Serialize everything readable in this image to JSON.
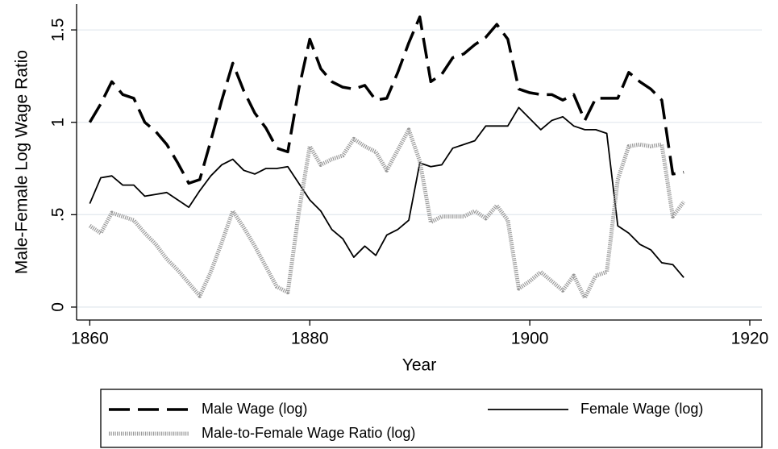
{
  "chart_data": {
    "type": "line",
    "x_label": "Year",
    "y_label": "Male-Female Log Wage Ratio",
    "x": [
      1860,
      1861,
      1862,
      1863,
      1864,
      1865,
      1866,
      1867,
      1868,
      1869,
      1870,
      1871,
      1872,
      1873,
      1874,
      1875,
      1876,
      1877,
      1878,
      1879,
      1880,
      1881,
      1882,
      1883,
      1884,
      1885,
      1886,
      1887,
      1888,
      1889,
      1890,
      1891,
      1892,
      1893,
      1894,
      1895,
      1896,
      1897,
      1898,
      1899,
      1900,
      1901,
      1902,
      1903,
      1904,
      1905,
      1906,
      1907,
      1908,
      1909,
      1910,
      1911,
      1912,
      1913,
      1914
    ],
    "series": [
      {
        "name": "Male Wage (log)",
        "color": "#000000",
        "style": "dashed",
        "values": [
          1.0,
          1.1,
          1.22,
          1.15,
          1.13,
          1.0,
          0.95,
          0.88,
          0.78,
          0.67,
          0.69,
          0.9,
          1.12,
          1.32,
          1.17,
          1.05,
          0.97,
          0.86,
          0.84,
          1.18,
          1.45,
          1.29,
          1.22,
          1.19,
          1.18,
          1.2,
          1.12,
          1.13,
          1.27,
          1.43,
          1.57,
          1.22,
          1.26,
          1.35,
          1.37,
          1.42,
          1.46,
          1.53,
          1.45,
          1.18,
          1.16,
          1.15,
          1.15,
          1.12,
          1.15,
          1.01,
          1.13,
          1.13,
          1.13,
          1.27,
          1.22,
          1.18,
          1.12,
          0.72,
          0.73
        ]
      },
      {
        "name": "Female Wage (log)",
        "color": "#000000",
        "style": "solid",
        "values": [
          0.56,
          0.7,
          0.71,
          0.66,
          0.66,
          0.6,
          0.61,
          0.62,
          0.58,
          0.54,
          0.63,
          0.71,
          0.77,
          0.8,
          0.74,
          0.72,
          0.75,
          0.75,
          0.76,
          0.67,
          0.58,
          0.52,
          0.42,
          0.37,
          0.27,
          0.33,
          0.28,
          0.39,
          0.42,
          0.47,
          0.78,
          0.76,
          0.77,
          0.86,
          0.88,
          0.9,
          0.98,
          0.98,
          0.98,
          1.08,
          1.02,
          0.96,
          1.01,
          1.03,
          0.98,
          0.96,
          0.96,
          0.94,
          0.44,
          0.4,
          0.34,
          0.31,
          0.24,
          0.23,
          0.16
        ]
      },
      {
        "name": "Male-to-Female Wage Ratio (log)",
        "color": "#999999",
        "style": "dotted",
        "values": [
          0.44,
          0.4,
          0.51,
          0.49,
          0.47,
          0.4,
          0.34,
          0.26,
          0.2,
          0.13,
          0.06,
          0.19,
          0.35,
          0.52,
          0.43,
          0.33,
          0.22,
          0.11,
          0.08,
          0.51,
          0.87,
          0.77,
          0.8,
          0.82,
          0.91,
          0.87,
          0.84,
          0.74,
          0.85,
          0.96,
          0.79,
          0.46,
          0.49,
          0.49,
          0.49,
          0.52,
          0.48,
          0.55,
          0.47,
          0.1,
          0.14,
          0.19,
          0.14,
          0.09,
          0.17,
          0.05,
          0.17,
          0.19,
          0.69,
          0.87,
          0.88,
          0.87,
          0.88,
          0.49,
          0.57
        ]
      }
    ],
    "xlim": [
      1858.8,
      1921.1
    ],
    "xticks": [
      1860,
      1880,
      1900,
      1920
    ],
    "ylim": [
      -0.07,
      1.64
    ],
    "yticks": [
      0,
      {
        "value": 0.5,
        "label": ".5"
      },
      1,
      1.5
    ],
    "grid": true,
    "legend": "bottom"
  }
}
